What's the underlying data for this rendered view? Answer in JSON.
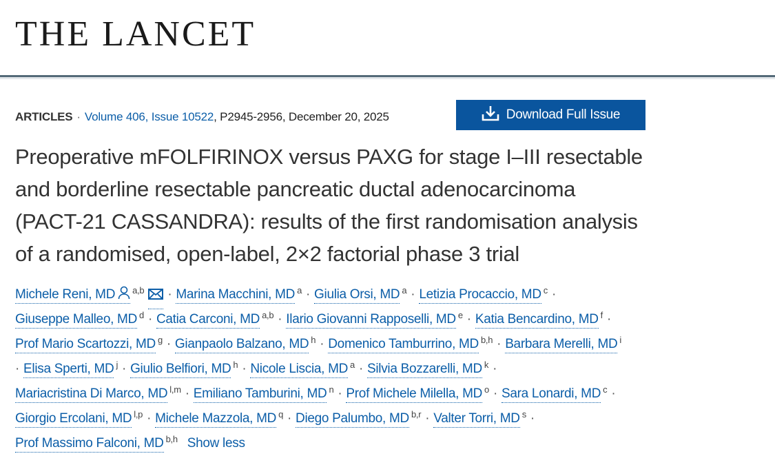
{
  "journal": {
    "logo_text": "THE LANCET"
  },
  "meta": {
    "article_type": "ARTICLES",
    "volume_issue": "Volume 406, Issue 10522",
    "pages_date": ", P2945-2956, December 20, 2025"
  },
  "download_button": {
    "label": "Download Full Issue",
    "icon": "download-icon"
  },
  "title_lines": [
    "Preoperative mFOLFIRINOX versus PAXG for stage I–III resectable",
    "and borderline resectable pancreatic ductal adenocarcinoma",
    "(PACT-21 CASSANDRA): results of the first randomisation analysis",
    "of a randomised, open-label, 2×2 factorial phase 3 trial"
  ],
  "authors": [
    {
      "name": "Michele Reni, MD",
      "sup": "a,b",
      "person_icon": true,
      "mail_icon": true
    },
    {
      "name": "Marina Macchini, MD",
      "sup": "a"
    },
    {
      "name": "Giulia Orsi, MD",
      "sup": "a"
    },
    {
      "name": "Letizia Procaccio, MD",
      "sup": "c"
    },
    {
      "name": "Giuseppe Malleo, MD",
      "sup": "d"
    },
    {
      "name": "Catia Carconi, MD",
      "sup": "a,b"
    },
    {
      "name": "Ilario Giovanni Rapposelli, MD",
      "sup": "e"
    },
    {
      "name": "Katia Bencardino, MD",
      "sup": "f"
    },
    {
      "name": "Prof Mario Scartozzi, MD",
      "sup": "g"
    },
    {
      "name": "Gianpaolo Balzano, MD",
      "sup": "h"
    },
    {
      "name": "Domenico Tamburrino, MD",
      "sup": "b,h"
    },
    {
      "name": "Barbara Merelli, MD",
      "sup": "i"
    },
    {
      "name": "Elisa Sperti, MD",
      "sup": "j"
    },
    {
      "name": "Giulio Belfiori, MD",
      "sup": "h"
    },
    {
      "name": "Nicole Liscia, MD",
      "sup": "a"
    },
    {
      "name": "Silvia Bozzarelli, MD",
      "sup": "k"
    },
    {
      "name": "Mariacristina Di Marco, MD",
      "sup": "l,m"
    },
    {
      "name": "Emiliano Tamburini, MD",
      "sup": "n"
    },
    {
      "name": "Prof Michele Milella, MD",
      "sup": "o"
    },
    {
      "name": "Sara Lonardi, MD",
      "sup": "c"
    },
    {
      "name": "Giorgio Ercolani, MD",
      "sup": "l,p"
    },
    {
      "name": "Michele Mazzola, MD",
      "sup": "q"
    },
    {
      "name": "Diego Palumbo, MD",
      "sup": "b,r"
    },
    {
      "name": "Valter Torri, MD",
      "sup": "s"
    },
    {
      "name": "Prof Massimo Falconi, MD",
      "sup": "b,h"
    }
  ],
  "separator": "·",
  "show_less_label": "Show less",
  "colors": {
    "link": "#0c5ea8",
    "button_bg": "#0a559e",
    "rule": "#546a78"
  }
}
